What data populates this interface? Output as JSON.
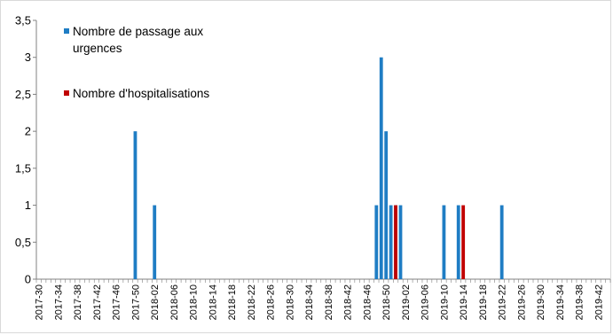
{
  "chart_data": {
    "type": "bar",
    "ylim": [
      0,
      3.5
    ],
    "yticks": [
      "0",
      "0,5",
      "1",
      "1,5",
      "2",
      "2,5",
      "3",
      "3,5"
    ],
    "ytick_values": [
      0,
      0.5,
      1,
      1.5,
      2,
      2.5,
      3,
      3.5
    ],
    "x_labels": [
      "2017-30",
      "2017-34",
      "2017-38",
      "2017-42",
      "2017-46",
      "2017-50",
      "2018-02",
      "2018-06",
      "2018-10",
      "2018-14",
      "2018-18",
      "2018-22",
      "2018-26",
      "2018-30",
      "2018-34",
      "2018-38",
      "2018-42",
      "2018-46",
      "2018-50",
      "2019-02",
      "2019-06",
      "2019-10",
      "2019-14",
      "2019-18",
      "2019-22",
      "2019-26",
      "2019-30",
      "2019-34",
      "2019-38",
      "2019-42"
    ],
    "series": [
      {
        "name": "Nombre de passage aux urgences",
        "color": "#1f7dc4",
        "points": [
          {
            "week": "2017-50",
            "value": 2
          },
          {
            "week": "2018-02",
            "value": 1
          },
          {
            "week": "2018-48",
            "value": 1
          },
          {
            "week": "2018-49",
            "value": 3
          },
          {
            "week": "2018-50",
            "value": 2
          },
          {
            "week": "2018-51",
            "value": 1
          },
          {
            "week": "2018-52",
            "value": 1
          },
          {
            "week": "2019-01",
            "value": 1
          },
          {
            "week": "2019-10",
            "value": 1
          },
          {
            "week": "2019-13",
            "value": 1
          },
          {
            "week": "2019-22",
            "value": 1
          }
        ]
      },
      {
        "name": "Nombre d'hospitalisations",
        "color": "#c00000",
        "points": [
          {
            "week": "2018-52",
            "value": 1
          },
          {
            "week": "2019-14",
            "value": 1
          }
        ]
      }
    ],
    "legend": {
      "entries": [
        {
          "label_line1": "Nombre de passage aux",
          "label_line2": "urgences"
        },
        {
          "label_line1": "Nombre d'hospitalisations",
          "label_line2": ""
        }
      ],
      "position": "top-left inside plot"
    },
    "grid": false
  }
}
